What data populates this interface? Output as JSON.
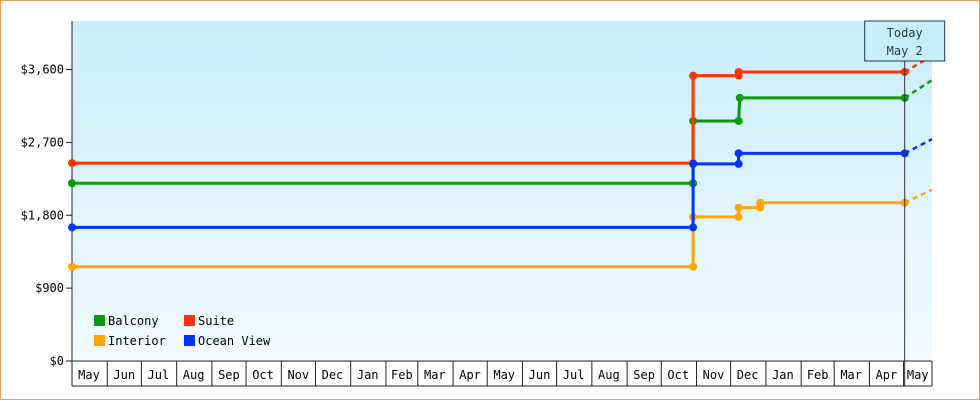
{
  "chart_data": {
    "type": "line",
    "title": "",
    "xlabel": "",
    "ylabel": "",
    "ylim": [
      0,
      4200
    ],
    "y_ticks": [
      0,
      900,
      1800,
      2700,
      3600
    ],
    "y_tick_labels": [
      "$0",
      "$900",
      "$1,800",
      "$2,700",
      "$3,600"
    ],
    "x_range": [
      "2014-05-01",
      "2016-05-26"
    ],
    "month_labels": [
      "May",
      "Jun",
      "Jul",
      "Aug",
      "Sep",
      "Oct",
      "Nov",
      "Dec",
      "Jan",
      "Feb",
      "Mar",
      "Apr",
      "May",
      "Jun",
      "Jul",
      "Aug",
      "Sep",
      "Oct",
      "Nov",
      "Dec",
      "Jan",
      "Feb",
      "Mar",
      "Apr",
      "May"
    ],
    "grid": false,
    "background": "light-blue gradient",
    "today_marker": {
      "date": "2016-05-02",
      "label_line1": "Today",
      "label_line2": "May 2"
    },
    "legend": {
      "position": "bottom-left",
      "entries": [
        "Balcony",
        "Suite",
        "Interior",
        "Ocean View"
      ]
    },
    "series": [
      {
        "name": "Balcony",
        "color": "#0a9a0a",
        "points": [
          [
            "2014-05-01",
            2195
          ],
          [
            "2015-10-29",
            2195
          ],
          [
            "2015-10-29",
            2965
          ],
          [
            "2015-12-08",
            2965
          ],
          [
            "2015-12-09",
            3250
          ],
          [
            "2016-05-02",
            3250
          ]
        ],
        "projection": [
          "2016-05-26",
          3470
        ]
      },
      {
        "name": "Suite",
        "color": "#ff3300",
        "points": [
          [
            "2014-05-01",
            2445
          ],
          [
            "2015-10-29",
            2445
          ],
          [
            "2015-10-29",
            3525
          ],
          [
            "2015-12-08",
            3525
          ],
          [
            "2015-12-08",
            3570
          ],
          [
            "2016-05-02",
            3570
          ]
        ],
        "projection": [
          "2016-05-26",
          3770
        ]
      },
      {
        "name": "Interior",
        "color": "#ffa500",
        "points": [
          [
            "2014-05-01",
            1165
          ],
          [
            "2015-10-29",
            1165
          ],
          [
            "2015-10-29",
            1780
          ],
          [
            "2015-12-08",
            1780
          ],
          [
            "2015-12-08",
            1895
          ],
          [
            "2015-12-27",
            1895
          ],
          [
            "2015-12-27",
            1955
          ],
          [
            "2016-05-02",
            1955
          ]
        ],
        "projection": [
          "2016-05-26",
          2115
        ]
      },
      {
        "name": "Ocean View",
        "color": "#0033ff",
        "points": [
          [
            "2014-05-01",
            1650
          ],
          [
            "2015-10-29",
            1650
          ],
          [
            "2015-10-29",
            2435
          ],
          [
            "2015-12-08",
            2435
          ],
          [
            "2015-12-08",
            2565
          ],
          [
            "2016-05-02",
            2565
          ]
        ],
        "projection": [
          "2016-05-26",
          2740
        ]
      }
    ]
  }
}
